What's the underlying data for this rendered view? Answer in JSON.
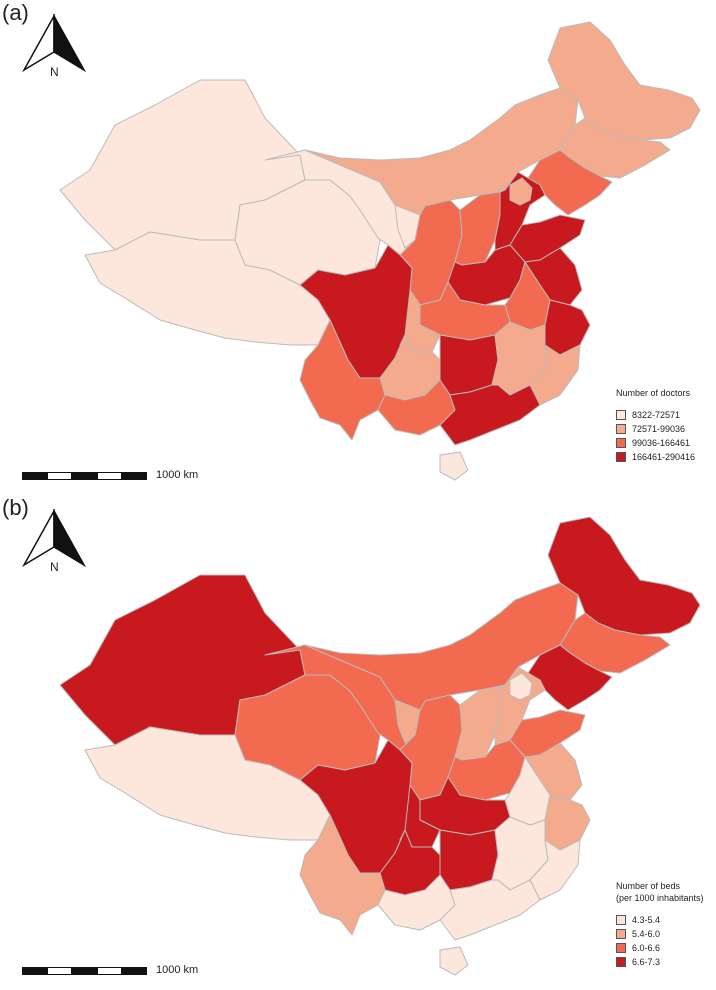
{
  "north_letter": "N",
  "scale_label": "1000 km",
  "colors": {
    "c1": "#fde6dc",
    "c2": "#f4aa8c",
    "c3": "#f26a4f",
    "c4": "#c8191e",
    "border": "#bbbbbb"
  },
  "panels": [
    {
      "label": "(a)",
      "legend": {
        "title": "Number of doctors",
        "subtitle": "",
        "classes": [
          "8322-72571",
          "72571-99036",
          "99036-166461",
          "166461-290416"
        ]
      }
    },
    {
      "label": "(b)",
      "legend": {
        "title": "Number of beds",
        "subtitle": "(per 1000 inhabitants)",
        "classes": [
          "4.3-5.4",
          "5.4-6.0",
          "6.0-6.6",
          "6.6-7.3"
        ]
      }
    }
  ],
  "regions": {
    "xinjiang": [
      1,
      4
    ],
    "tibet": [
      1,
      1
    ],
    "qinghai": [
      1,
      3
    ],
    "gansu": [
      1,
      3
    ],
    "inner_mongolia": [
      2,
      3
    ],
    "heilongjiang": [
      2,
      4
    ],
    "jilin": [
      2,
      3
    ],
    "liaoning": [
      3,
      4
    ],
    "ningxia": [
      1,
      2
    ],
    "shaanxi": [
      3,
      3
    ],
    "shanxi": [
      3,
      2
    ],
    "hebei": [
      4,
      2
    ],
    "beijing_tianjin": [
      2,
      1
    ],
    "shandong": [
      4,
      3
    ],
    "henan": [
      4,
      3
    ],
    "jiangsu": [
      4,
      2
    ],
    "anhui": [
      3,
      1
    ],
    "zhejiang": [
      4,
      2
    ],
    "hubei": [
      3,
      4
    ],
    "sichuan": [
      4,
      4
    ],
    "chongqing": [
      2,
      4
    ],
    "guizhou": [
      2,
      4
    ],
    "yunnan": [
      3,
      2
    ],
    "hunan": [
      4,
      4
    ],
    "jiangxi": [
      2,
      1
    ],
    "fujian": [
      2,
      1
    ],
    "guangxi": [
      3,
      1
    ],
    "guangdong": [
      4,
      1
    ],
    "hainan": [
      1,
      1
    ]
  }
}
